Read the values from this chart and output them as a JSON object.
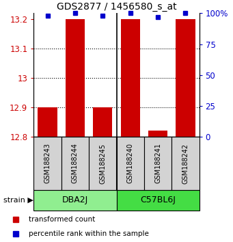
{
  "title": "GDS2877 / 1456580_s_at",
  "samples": [
    "GSM188243",
    "GSM188244",
    "GSM188245",
    "GSM188240",
    "GSM188241",
    "GSM188242"
  ],
  "groups": [
    {
      "name": "DBA2J",
      "indices": [
        0,
        1,
        2
      ]
    },
    {
      "name": "C57BL6J",
      "indices": [
        3,
        4,
        5
      ]
    }
  ],
  "bar_values": [
    12.9,
    13.2,
    12.9,
    13.2,
    12.82,
    13.2
  ],
  "bar_bottom": 12.8,
  "percentile_values": [
    98,
    100,
    98,
    100,
    97,
    100
  ],
  "ylim": [
    12.8,
    13.22
  ],
  "yticks": [
    12.8,
    12.9,
    13.0,
    13.1,
    13.2
  ],
  "ytick_labels": [
    "12.8",
    "12.9",
    "13",
    "13.1",
    "13.2"
  ],
  "right_yticks": [
    0,
    25,
    50,
    75,
    100
  ],
  "right_ytick_labels": [
    "0",
    "25",
    "50",
    "75",
    "100%"
  ],
  "bar_color": "#CC0000",
  "percentile_color": "#0000CC",
  "label_color_left": "#CC0000",
  "label_color_right": "#0000CC",
  "sample_box_color": "#D3D3D3",
  "group_colors": [
    "#90EE90",
    "#44DD44"
  ],
  "legend_red_label": "transformed count",
  "legend_blue_label": "percentile rank within the sample",
  "bar_width": 0.7
}
